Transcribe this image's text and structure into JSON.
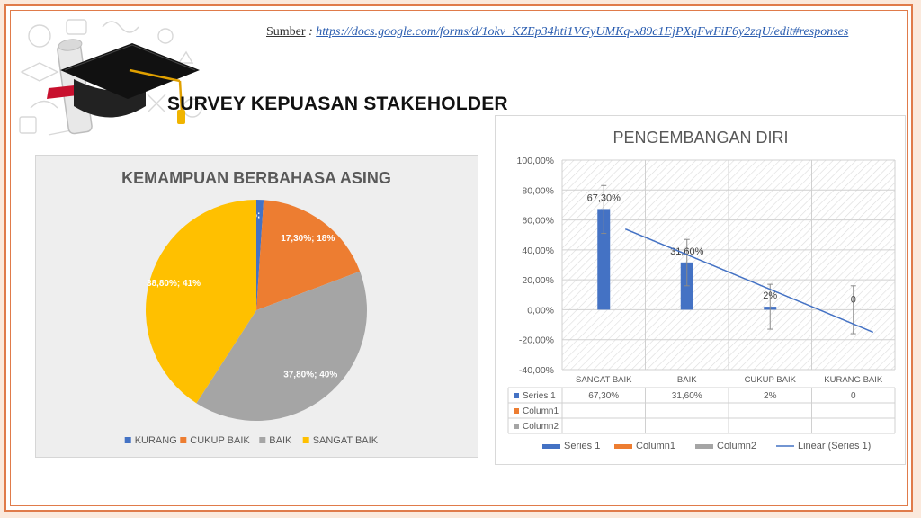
{
  "source": {
    "label": "Sumber",
    "separator": " : ",
    "url": "https://docs.google.com/forms/d/1okv_KZEp34hti1VGyUMKq-x89c1EjPXqFwFiF6y2zqU/edit#responses"
  },
  "main_title": "SURVEY KEPUASAN STAKEHOLDER",
  "icons": [
    "graduation-cap-icon",
    "diploma-scroll-icon"
  ],
  "chart_data": [
    {
      "type": "pie",
      "title": "KEMAMPUAN BERBAHASA ASING",
      "categories": [
        "KURANG",
        "CUKUP BAIK",
        "BAIK",
        "SANGAT BAIK"
      ],
      "values": [
        1,
        17.3,
        37.8,
        38.8
      ],
      "data_labels": [
        "1%; 1%",
        "17,30%; 18%",
        "37,80%; 40%",
        "38,80%; 41%"
      ],
      "colors": [
        "#4472c4",
        "#ed7d31",
        "#a5a5a5",
        "#ffc000"
      ],
      "legend": [
        "KURANG",
        "CUKUP BAIK",
        "BAIK",
        "SANGAT BAIK"
      ],
      "legend_position": "bottom"
    },
    {
      "type": "bar",
      "title": "PENGEMBANGAN DIRI",
      "categories": [
        "SANGAT BAIK",
        "BAIK",
        "CUKUP BAIK",
        "KURANG BAIK"
      ],
      "series": [
        {
          "name": "Series 1",
          "values": [
            67.3,
            31.6,
            2,
            0
          ],
          "color": "#4472c4"
        },
        {
          "name": "Column1",
          "values": [
            null,
            null,
            null,
            null
          ],
          "color": "#ed7d31"
        },
        {
          "name": "Column2",
          "values": [
            null,
            null,
            null,
            null
          ],
          "color": "#a5a5a5"
        }
      ],
      "data_labels": [
        "67,30%",
        "31,60%",
        "2%",
        "0"
      ],
      "error_bars": {
        "upper": [
          83,
          47,
          17,
          16
        ],
        "lower": [
          51,
          16,
          -13,
          -16
        ]
      },
      "trendline": {
        "name": "Linear (Series 1)",
        "type": "linear",
        "series": "Series 1",
        "color": "#4472c4"
      },
      "y_ticks": [
        "100,00%",
        "80,00%",
        "60,00%",
        "40,00%",
        "20,00%",
        "0,00%",
        "-20,00%",
        "-40,00%"
      ],
      "ylim": [
        -40,
        100
      ],
      "grid": true,
      "data_table": {
        "rows": [
          {
            "name": "Series 1",
            "cells": [
              "67,30%",
              "31,60%",
              "2%",
              "0"
            ]
          },
          {
            "name": "Column1",
            "cells": [
              "",
              "",
              "",
              ""
            ]
          },
          {
            "name": "Column2",
            "cells": [
              "",
              "",
              "",
              ""
            ]
          }
        ]
      },
      "legend": [
        "Series 1",
        "Column1",
        "Column2",
        "Linear (Series 1)"
      ],
      "legend_position": "bottom"
    }
  ]
}
